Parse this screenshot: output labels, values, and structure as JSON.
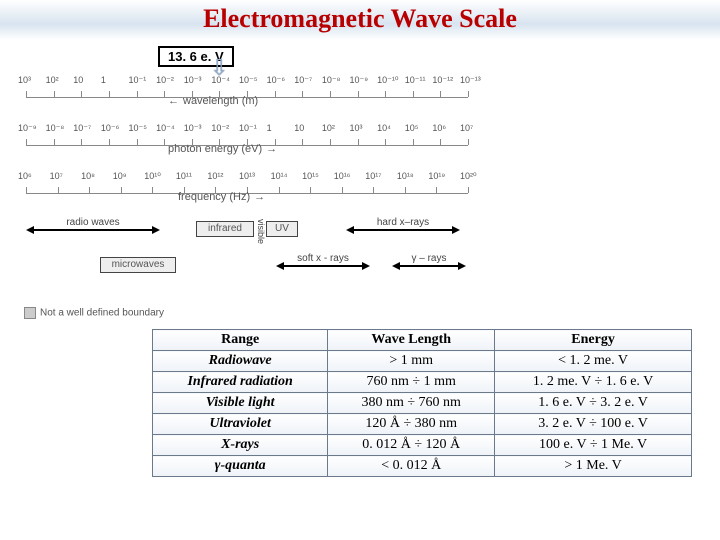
{
  "title": "Electromagnetic Wave Scale",
  "title_color": "#b80000",
  "ev_box": "13. 6 e. V",
  "figure": {
    "wavelength": {
      "label": "wavelength (m)",
      "ticks": [
        "10³",
        "10²",
        "10",
        "1",
        "10⁻¹",
        "10⁻²",
        "10⁻³",
        "10⁻⁴",
        "10⁻⁵",
        "10⁻⁶",
        "10⁻⁷",
        "10⁻⁸",
        "10⁻⁹",
        "10⁻¹⁰",
        "10⁻¹¹",
        "10⁻¹²",
        "10⁻¹³"
      ]
    },
    "energy": {
      "label": "photon energy (eV)",
      "ticks": [
        "10⁻⁹",
        "10⁻⁸",
        "10⁻⁷",
        "10⁻⁶",
        "10⁻⁵",
        "10⁻⁴",
        "10⁻³",
        "10⁻²",
        "10⁻¹",
        "1",
        "10",
        "10²",
        "10³",
        "10⁴",
        "10⁵",
        "10⁶",
        "10⁷"
      ]
    },
    "frequency": {
      "label": "frequency (Hz)",
      "ticks": [
        "10⁶",
        "10⁷",
        "10⁸",
        "10⁹",
        "10¹⁰",
        "10¹¹",
        "10¹²",
        "10¹³",
        "10¹⁴",
        "10¹⁵",
        "10¹⁶",
        "10¹⁷",
        "10¹⁸",
        "10¹⁹",
        "10²⁰"
      ]
    },
    "bands": {
      "radio": "radio waves",
      "micro": "microwaves",
      "infrared": "infrared",
      "visible": "visible",
      "uv": "UV",
      "softx": "soft x - rays",
      "hardx": "hard x–rays",
      "gamma": "γ – rays"
    },
    "note": "Not a well defined boundary"
  },
  "table": {
    "headers": [
      "Range",
      "Wave Length",
      "Energy"
    ],
    "rows": [
      [
        "Radiowave",
        "> 1 mm",
        "< 1. 2 me. V"
      ],
      [
        "Infrared radiation",
        "760 nm ÷ 1 mm",
        "1. 2 me. V ÷ 1. 6 e. V"
      ],
      [
        "Visible light",
        "380 nm ÷ 760 nm",
        "1. 6 e. V ÷ 3. 2 e. V"
      ],
      [
        "Ultraviolet",
        "120 Å ÷ 380 nm",
        "3. 2 e. V ÷ 100 e. V"
      ],
      [
        "X-rays",
        "0. 012 Å ÷ 120 Å",
        "100 e. V ÷ 1 Me. V"
      ],
      [
        "γ-quanta",
        "< 0. 012 Å",
        "> 1 Me. V"
      ]
    ]
  }
}
